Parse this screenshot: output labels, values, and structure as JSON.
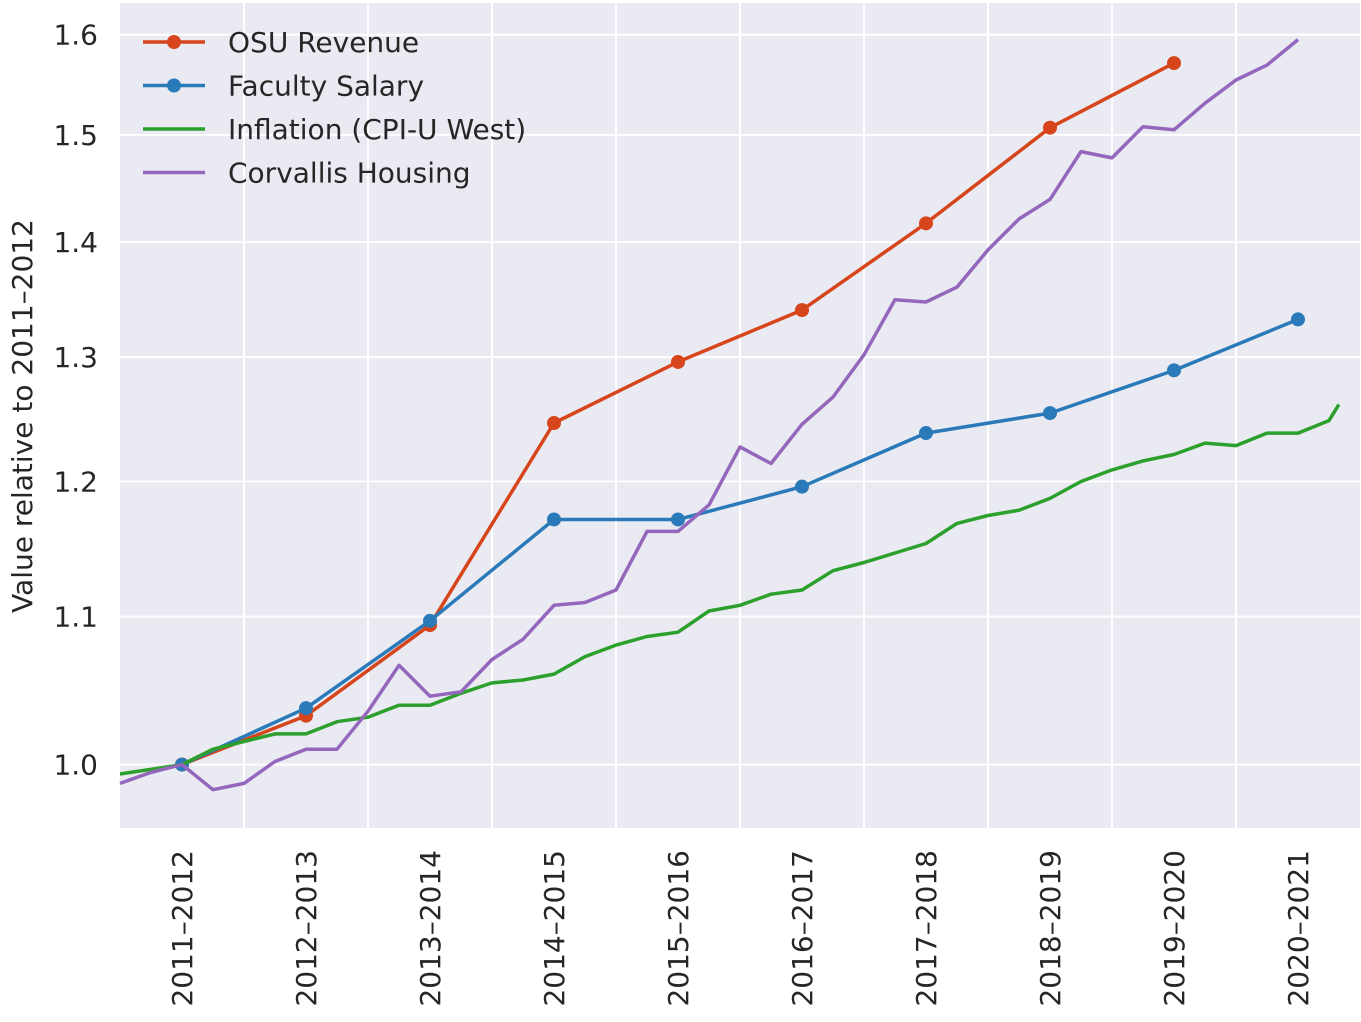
{
  "chart_data": {
    "type": "line",
    "ylabel": "Value relative to 2011–2012",
    "ylog": true,
    "grid": true,
    "legend": "upper left",
    "xlim": [
      2011.0,
      2021.0
    ],
    "ylim": [
      0.96,
      1.633
    ],
    "xticks": [
      {
        "value": 2011.5,
        "label": "2011–2012"
      },
      {
        "value": 2012.5,
        "label": "2012–2013"
      },
      {
        "value": 2013.5,
        "label": "2013–2014"
      },
      {
        "value": 2014.5,
        "label": "2014–2015"
      },
      {
        "value": 2015.5,
        "label": "2015–2016"
      },
      {
        "value": 2016.5,
        "label": "2016–2017"
      },
      {
        "value": 2017.5,
        "label": "2017–2018"
      },
      {
        "value": 2018.5,
        "label": "2018–2019"
      },
      {
        "value": 2019.5,
        "label": "2019–2020"
      },
      {
        "value": 2020.5,
        "label": "2020–2021"
      }
    ],
    "xgridlines": [
      2012,
      2013,
      2014,
      2015,
      2016,
      2017,
      2018,
      2019,
      2020
    ],
    "yticks": [
      {
        "value": 1,
        "label": "1.0"
      },
      1.1,
      1.2,
      1.3,
      1.4,
      1.5,
      1.6
    ],
    "series": [
      {
        "name": "OSU Revenue",
        "color": "#d6451b",
        "marker": true,
        "x": [
          2011.5,
          2012.5,
          2013.5,
          2014.5,
          2015.5,
          2016.5,
          2017.5,
          2018.5,
          2019.5
        ],
        "values": [
          1.0,
          1.032,
          1.094,
          1.246,
          1.296,
          1.34,
          1.417,
          1.507,
          1.571
        ]
      },
      {
        "name": "Faculty Salary",
        "color": "#2a7ab9",
        "marker": true,
        "x": [
          2011.5,
          2012.5,
          2013.5,
          2014.5,
          2015.5,
          2016.5,
          2017.5,
          2018.5,
          2019.5,
          2020.5
        ],
        "values": [
          1.0,
          1.037,
          1.097,
          1.171,
          1.171,
          1.196,
          1.238,
          1.254,
          1.289,
          1.332
        ]
      },
      {
        "name": "Inflation (CPI-U West)",
        "color": "#2ca02c",
        "marker": false,
        "x": [
          2011.0,
          2011.25,
          2011.5,
          2011.75,
          2012.0,
          2012.25,
          2012.5,
          2012.75,
          2013.0,
          2013.25,
          2013.5,
          2013.75,
          2014.0,
          2014.25,
          2014.5,
          2014.75,
          2015.0,
          2015.25,
          2015.5,
          2015.75,
          2016.0,
          2016.25,
          2016.5,
          2016.75,
          2017.0,
          2017.25,
          2017.5,
          2017.75,
          2018.0,
          2018.25,
          2018.5,
          2018.75,
          2019.0,
          2019.25,
          2019.5,
          2019.75,
          2020.0,
          2020.25,
          2020.5,
          2020.75,
          2020.83
        ],
        "values": [
          0.994,
          0.997,
          1.0,
          1.01,
          1.015,
          1.02,
          1.02,
          1.028,
          1.031,
          1.039,
          1.039,
          1.047,
          1.054,
          1.056,
          1.06,
          1.072,
          1.08,
          1.086,
          1.089,
          1.104,
          1.108,
          1.116,
          1.119,
          1.133,
          1.139,
          1.146,
          1.153,
          1.168,
          1.174,
          1.178,
          1.187,
          1.2,
          1.209,
          1.216,
          1.221,
          1.23,
          1.228,
          1.238,
          1.238,
          1.248,
          1.261
        ]
      },
      {
        "name": "Corvallis Housing",
        "color": "#9467bd",
        "marker": false,
        "x": [
          2011.0,
          2011.25,
          2011.5,
          2011.75,
          2012.0,
          2012.25,
          2012.5,
          2012.75,
          2013.0,
          2013.25,
          2013.5,
          2013.75,
          2014.0,
          2014.25,
          2014.5,
          2014.75,
          2015.0,
          2015.25,
          2015.5,
          2015.75,
          2016.0,
          2016.25,
          2016.5,
          2016.75,
          2017.0,
          2017.25,
          2017.5,
          2017.75,
          2018.0,
          2018.25,
          2018.5,
          2018.75,
          2019.0,
          2019.25,
          2019.5,
          2019.75,
          2020.0,
          2020.25,
          2020.5
        ],
        "values": [
          0.988,
          0.995,
          1.0,
          0.984,
          0.988,
          1.002,
          1.01,
          1.01,
          1.035,
          1.066,
          1.045,
          1.048,
          1.07,
          1.084,
          1.108,
          1.11,
          1.119,
          1.162,
          1.162,
          1.182,
          1.227,
          1.214,
          1.245,
          1.267,
          1.302,
          1.349,
          1.347,
          1.36,
          1.393,
          1.421,
          1.439,
          1.484,
          1.478,
          1.508,
          1.505,
          1.531,
          1.554,
          1.569,
          1.595
        ]
      }
    ]
  }
}
